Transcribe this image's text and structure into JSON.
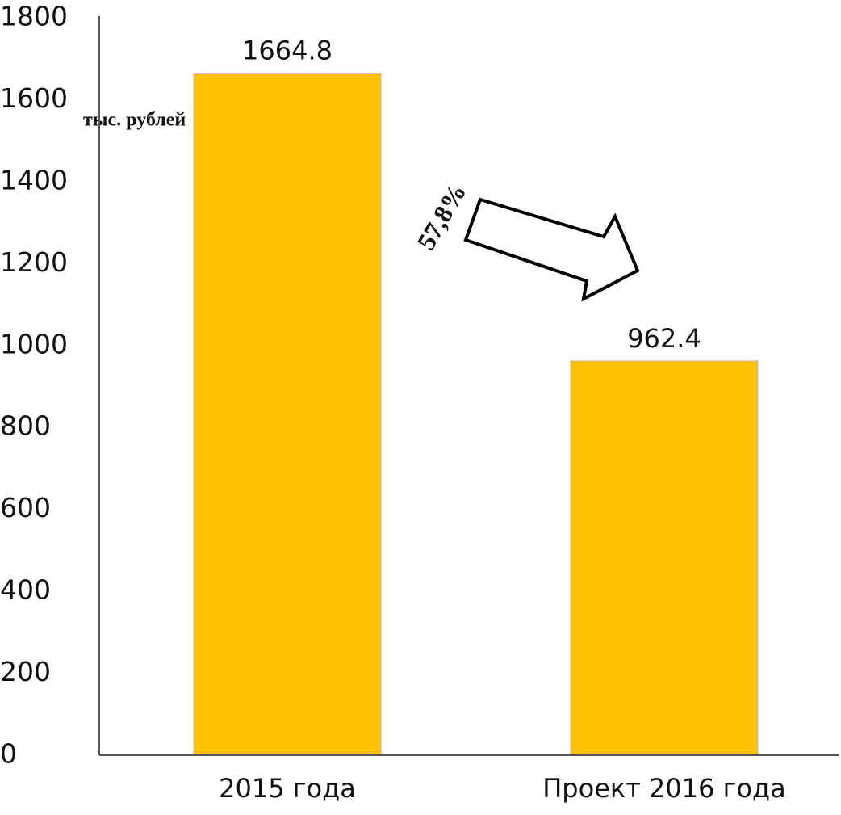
{
  "chart_data": {
    "type": "bar",
    "categories": [
      "2015 года",
      "Проект 2016 года"
    ],
    "values": [
      1664.8,
      962.4
    ],
    "color": "#ffc000",
    "ylim": [
      0,
      1800
    ],
    "yticks": [
      0,
      200,
      400,
      600,
      800,
      1000,
      1200,
      1400,
      1600,
      1800
    ],
    "grid": false,
    "annotations": [
      "тыс. рублей",
      "57,8%"
    ]
  }
}
